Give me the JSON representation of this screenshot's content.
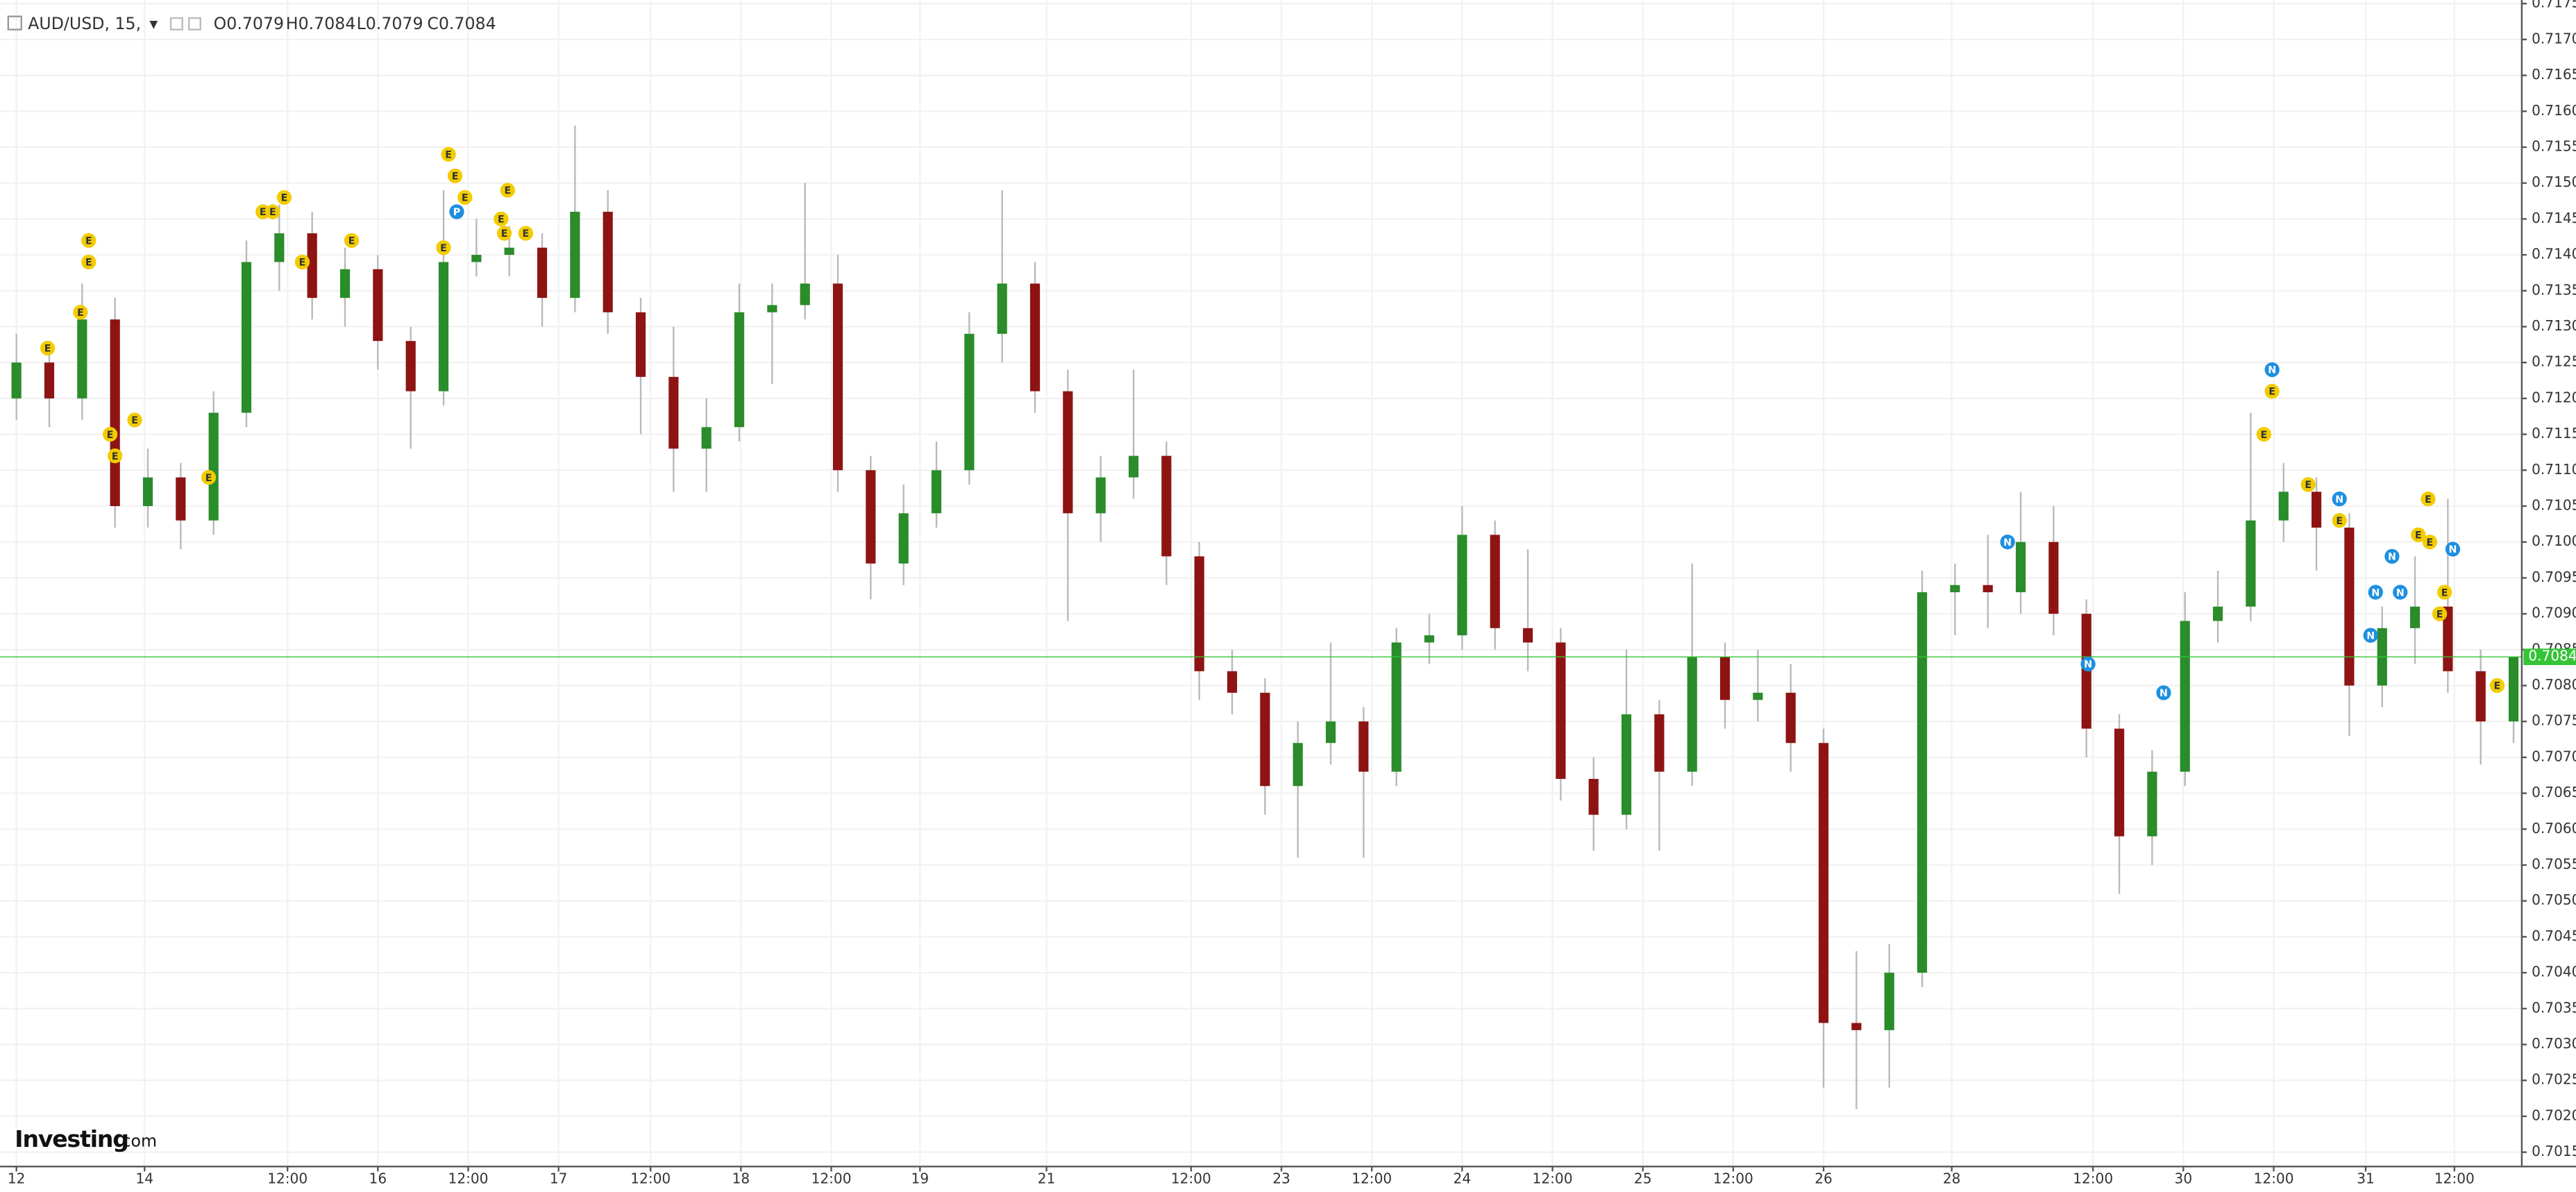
{
  "chart_data": {
    "type": "candlestick",
    "symbol": "AUD/USD, 15,",
    "ohlc_text": [
      "O0.7079",
      "H0.7084",
      "L0.7079",
      "C0.7084"
    ],
    "logo": "Investing",
    "logo_suffix": ".com",
    "x": [
      10,
      30,
      50,
      70,
      90,
      110,
      130,
      150,
      170,
      190,
      210,
      230,
      250,
      270,
      290,
      310,
      330,
      350,
      370,
      390,
      410,
      430,
      450,
      470,
      490,
      510,
      530,
      550,
      570,
      590,
      610,
      630,
      650,
      670,
      690,
      710,
      730,
      750,
      770,
      790,
      810,
      830,
      850,
      870,
      890,
      910,
      930,
      950,
      970,
      990,
      1010,
      1030,
      1050,
      1070,
      1090,
      1110,
      1130,
      1150,
      1170,
      1190,
      1210,
      1230,
      1250,
      1270,
      1290,
      1310,
      1330,
      1350,
      1370,
      1390,
      1410,
      1430,
      1450,
      1470,
      1490,
      1510,
      1530
    ],
    "open": [
      0.712,
      0.7125,
      0.712,
      0.7131,
      0.7105,
      0.7109,
      0.7103,
      0.7118,
      0.7139,
      0.7143,
      0.7134,
      0.7138,
      0.7128,
      0.7121,
      0.7139,
      0.714,
      0.7141,
      0.7134,
      0.7146,
      0.7132,
      0.7123,
      0.7113,
      0.7116,
      0.7132,
      0.7133,
      0.7136,
      0.711,
      0.7097,
      0.7104,
      0.711,
      0.7129,
      0.7136,
      0.7121,
      0.7104,
      0.7109,
      0.7112,
      0.7098,
      0.7082,
      0.7079,
      0.7066,
      0.7072,
      0.7075,
      0.7068,
      0.7086,
      0.7087,
      0.7101,
      0.7088,
      0.7086,
      0.7067,
      0.7062,
      0.7076,
      0.7068,
      0.7084,
      0.7078,
      0.7079,
      0.7072,
      0.7033,
      0.7032,
      0.704,
      0.7093,
      0.7094,
      0.7093,
      0.71,
      0.709,
      0.7074,
      0.7059,
      0.7068,
      0.7089,
      0.7091,
      0.7103,
      0.7107,
      0.7102,
      0.708,
      0.7088,
      0.7091,
      0.7082,
      0.7075
    ],
    "high": [
      0.7129,
      0.7128,
      0.7136,
      0.7134,
      0.7113,
      0.7111,
      0.7121,
      0.7142,
      0.7147,
      0.7146,
      0.7141,
      0.714,
      0.713,
      0.7149,
      0.7145,
      0.7144,
      0.7143,
      0.7158,
      0.7149,
      0.7134,
      0.713,
      0.712,
      0.7136,
      0.7136,
      0.715,
      0.714,
      0.7112,
      0.7108,
      0.7114,
      0.7132,
      0.7149,
      0.7139,
      0.7124,
      0.7112,
      0.7124,
      0.7114,
      0.71,
      0.7085,
      0.7081,
      0.7075,
      0.7086,
      0.7077,
      0.7088,
      0.709,
      0.7105,
      0.7103,
      0.7099,
      0.7088,
      0.707,
      0.7085,
      0.7078,
      0.7097,
      0.7086,
      0.7085,
      0.7083,
      0.7074,
      0.7043,
      0.7044,
      0.7096,
      0.7097,
      0.7101,
      0.7107,
      0.7105,
      0.7092,
      0.7076,
      0.7071,
      0.7093,
      0.7096,
      0.7118,
      0.7111,
      0.7109,
      0.7104,
      0.7091,
      0.7098,
      0.7106,
      0.7085,
      0.7084
    ],
    "low": [
      0.7117,
      0.7116,
      0.7117,
      0.7102,
      0.7102,
      0.7099,
      0.7101,
      0.7116,
      0.7135,
      0.7131,
      0.713,
      0.7124,
      0.7113,
      0.7119,
      0.7137,
      0.7137,
      0.713,
      0.7132,
      0.7129,
      0.7115,
      0.7107,
      0.7107,
      0.7114,
      0.7122,
      0.7131,
      0.7107,
      0.7092,
      0.7094,
      0.7102,
      0.7108,
      0.7125,
      0.7118,
      0.7089,
      0.71,
      0.7106,
      0.7094,
      0.7078,
      0.7076,
      0.7062,
      0.7056,
      0.7069,
      0.7056,
      0.7066,
      0.7083,
      0.7085,
      0.7085,
      0.7082,
      0.7064,
      0.7057,
      0.706,
      0.7057,
      0.7066,
      0.7074,
      0.7075,
      0.7068,
      0.7024,
      0.7021,
      0.7024,
      0.7038,
      0.7087,
      0.7088,
      0.709,
      0.7087,
      0.707,
      0.7051,
      0.7055,
      0.7066,
      0.7086,
      0.7089,
      0.71,
      0.7096,
      0.7073,
      0.7077,
      0.7083,
      0.7079,
      0.7069,
      0.7072
    ],
    "close": [
      0.7125,
      0.712,
      0.7131,
      0.7105,
      0.7109,
      0.7103,
      0.7118,
      0.7139,
      0.7143,
      0.7134,
      0.7138,
      0.7128,
      0.7121,
      0.7139,
      0.714,
      0.7141,
      0.7134,
      0.7146,
      0.7132,
      0.7123,
      0.7113,
      0.7116,
      0.7132,
      0.7133,
      0.7136,
      0.711,
      0.7097,
      0.7104,
      0.711,
      0.7129,
      0.7136,
      0.7121,
      0.7104,
      0.7109,
      0.7112,
      0.7098,
      0.7082,
      0.7079,
      0.7066,
      0.7072,
      0.7075,
      0.7068,
      0.7086,
      0.7087,
      0.7101,
      0.7088,
      0.7086,
      0.7067,
      0.7062,
      0.7076,
      0.7068,
      0.7084,
      0.7078,
      0.7079,
      0.7072,
      0.7033,
      0.7032,
      0.704,
      0.7093,
      0.7094,
      0.7093,
      0.71,
      0.709,
      0.7074,
      0.7059,
      0.7068,
      0.7089,
      0.7091,
      0.7103,
      0.7107,
      0.7102,
      0.708,
      0.7088,
      0.7091,
      0.7082,
      0.7075,
      0.7084
    ],
    "up_color": "#2a8c2a",
    "down_color": "#8e1414",
    "grid_color": "#f2f2f2",
    "grid": true,
    "xlim": [
      0,
      1535
    ],
    "ylim": [
      0.7013,
      0.71755
    ],
    "xticks": [
      {
        "value": 10,
        "label": "12"
      },
      {
        "value": 88,
        "label": "14"
      },
      {
        "value": 175,
        "label": "12:00"
      },
      {
        "value": 230,
        "label": "16"
      },
      {
        "value": 285,
        "label": "12:00"
      },
      {
        "value": 340,
        "label": "17"
      },
      {
        "value": 396,
        "label": "12:00"
      },
      {
        "value": 451,
        "label": "18"
      },
      {
        "value": 506,
        "label": "12:00"
      },
      {
        "value": 560,
        "label": "19"
      },
      {
        "value": 637,
        "label": "21"
      },
      {
        "value": 725,
        "label": "12:00"
      },
      {
        "value": 780,
        "label": "23"
      },
      {
        "value": 835,
        "label": "12:00"
      },
      {
        "value": 890,
        "label": "24"
      },
      {
        "value": 945,
        "label": "12:00"
      },
      {
        "value": 1000,
        "label": "25"
      },
      {
        "value": 1055,
        "label": "12:00"
      },
      {
        "value": 1110,
        "label": "26"
      },
      {
        "value": 1188,
        "label": "28"
      },
      {
        "value": 1274,
        "label": "12:00"
      },
      {
        "value": 1329,
        "label": "30"
      },
      {
        "value": 1384,
        "label": "12:00"
      },
      {
        "value": 1440,
        "label": "31"
      },
      {
        "value": 1494,
        "label": "12:00"
      }
    ],
    "yticks": [
      0.7015,
      {
        "value": 0.702,
        "label": "0.7020"
      },
      0.7025,
      {
        "value": 0.703,
        "label": "0.7030"
      },
      0.7035,
      {
        "value": 0.704,
        "label": "0.7040"
      },
      0.7045,
      {
        "value": 0.705,
        "label": "0.7050"
      },
      0.7055,
      {
        "value": 0.706,
        "label": "0.7060"
      },
      0.7065,
      {
        "value": 0.707,
        "label": "0.7070"
      },
      0.7075,
      {
        "value": 0.708,
        "label": "0.7080"
      },
      0.7085,
      {
        "value": 0.709,
        "label": "0.7090"
      },
      0.7095,
      {
        "value": 0.71,
        "label": "0.7100"
      },
      0.7105,
      {
        "value": 0.711,
        "label": "0.7110"
      },
      0.7115,
      {
        "value": 0.712,
        "label": "0.7120"
      },
      0.7125,
      {
        "value": 0.713,
        "label": "0.7130"
      },
      0.7135,
      {
        "value": 0.714,
        "label": "0.7140"
      },
      0.7145,
      {
        "value": 0.715,
        "label": "0.7150"
      },
      0.7155,
      {
        "value": 0.716,
        "label": "0.7160"
      },
      0.7165,
      {
        "value": 0.717,
        "label": "0.7170"
      },
      0.7175
    ],
    "last_price": {
      "value": 0.7084,
      "label": "0.7084",
      "color": "#35c435"
    },
    "event_colors": {
      "E": "#f2cc00",
      "N": "#1e8fe0",
      "P": "#1e8fe0"
    },
    "events": [
      {
        "x": 29,
        "y": 0.7127,
        "label": "E"
      },
      {
        "x": 49,
        "y": 0.7132,
        "label": "E"
      },
      {
        "x": 54,
        "y": 0.7139,
        "label": "E"
      },
      {
        "x": 54,
        "y": 0.7142,
        "label": "E"
      },
      {
        "x": 67,
        "y": 0.7115,
        "label": "E"
      },
      {
        "x": 70,
        "y": 0.7112,
        "label": "E"
      },
      {
        "x": 82,
        "y": 0.7117,
        "label": "E"
      },
      {
        "x": 127,
        "y": 0.7109,
        "label": "E"
      },
      {
        "x": 160,
        "y": 0.7146,
        "label": "E"
      },
      {
        "x": 166,
        "y": 0.7146,
        "label": "E"
      },
      {
        "x": 173,
        "y": 0.7148,
        "label": "E"
      },
      {
        "x": 184,
        "y": 0.7139,
        "label": "E"
      },
      {
        "x": 214,
        "y": 0.7142,
        "label": "E"
      },
      {
        "x": 270,
        "y": 0.7141,
        "label": "E"
      },
      {
        "x": 273,
        "y": 0.7154,
        "label": "E"
      },
      {
        "x": 277,
        "y": 0.7151,
        "label": "E"
      },
      {
        "x": 278,
        "y": 0.7146,
        "label": "P"
      },
      {
        "x": 283,
        "y": 0.7148,
        "label": "E"
      },
      {
        "x": 305,
        "y": 0.7145,
        "label": "E"
      },
      {
        "x": 309,
        "y": 0.7149,
        "label": "E"
      },
      {
        "x": 307,
        "y": 0.7143,
        "label": "E"
      },
      {
        "x": 320,
        "y": 0.7143,
        "label": "E"
      },
      {
        "x": 1222,
        "y": 0.71,
        "label": "N"
      },
      {
        "x": 1271,
        "y": 0.7083,
        "label": "N"
      },
      {
        "x": 1317,
        "y": 0.7079,
        "label": "N"
      },
      {
        "x": 1383,
        "y": 0.7124,
        "label": "N"
      },
      {
        "x": 1383,
        "y": 0.7121,
        "label": "E"
      },
      {
        "x": 1378,
        "y": 0.7115,
        "label": "E"
      },
      {
        "x": 1405,
        "y": 0.7108,
        "label": "E"
      },
      {
        "x": 1424,
        "y": 0.7106,
        "label": "N"
      },
      {
        "x": 1424,
        "y": 0.7103,
        "label": "E"
      },
      {
        "x": 1443,
        "y": 0.7087,
        "label": "N"
      },
      {
        "x": 1446,
        "y": 0.7093,
        "label": "N"
      },
      {
        "x": 1456,
        "y": 0.7098,
        "label": "N"
      },
      {
        "x": 1461,
        "y": 0.7093,
        "label": "N"
      },
      {
        "x": 1478,
        "y": 0.7106,
        "label": "E"
      },
      {
        "x": 1472,
        "y": 0.7101,
        "label": "E"
      },
      {
        "x": 1479,
        "y": 0.71,
        "label": "E"
      },
      {
        "x": 1493,
        "y": 0.7099,
        "label": "N"
      },
      {
        "x": 1488,
        "y": 0.7093,
        "label": "E"
      },
      {
        "x": 1485,
        "y": 0.709,
        "label": "E"
      },
      {
        "x": 1520,
        "y": 0.708,
        "label": "E"
      }
    ]
  }
}
